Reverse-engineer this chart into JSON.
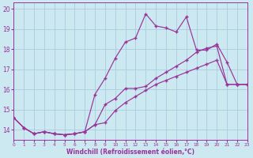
{
  "xlabel": "Windchill (Refroidissement éolien,°C)",
  "bg_color": "#cce8f0",
  "grid_color": "#aaccdd",
  "line_color": "#993399",
  "xmin": 0,
  "xmax": 23,
  "ymin": 13.5,
  "ymax": 20.3,
  "yticks": [
    14,
    15,
    16,
    17,
    18,
    19,
    20
  ],
  "xticks": [
    0,
    1,
    2,
    3,
    4,
    5,
    6,
    7,
    8,
    9,
    10,
    11,
    12,
    13,
    14,
    15,
    16,
    17,
    18,
    19,
    20,
    21,
    22,
    23
  ],
  "series1_x": [
    0,
    1,
    2,
    3,
    4,
    5,
    6,
    7,
    8,
    9,
    10,
    11,
    12,
    13,
    14,
    15,
    16,
    17,
    18,
    19,
    20,
    21,
    22,
    23
  ],
  "series1_y": [
    14.6,
    14.1,
    13.8,
    13.9,
    13.8,
    13.75,
    13.8,
    13.9,
    15.75,
    16.55,
    17.55,
    18.35,
    18.55,
    19.75,
    19.15,
    19.05,
    18.85,
    19.6,
    17.95,
    17.95,
    18.25,
    17.35,
    16.25,
    16.25
  ],
  "series2_x": [
    0,
    1,
    2,
    3,
    4,
    5,
    6,
    7,
    8,
    9,
    10,
    11,
    12,
    13,
    14,
    15,
    16,
    17,
    18,
    19,
    20,
    21,
    22,
    23
  ],
  "series2_y": [
    14.6,
    14.1,
    13.8,
    13.9,
    13.8,
    13.75,
    13.8,
    13.9,
    14.25,
    15.25,
    15.55,
    16.05,
    16.05,
    16.15,
    16.55,
    16.85,
    17.15,
    17.45,
    17.85,
    18.05,
    18.15,
    16.25,
    16.25,
    16.25
  ],
  "series3_x": [
    0,
    1,
    2,
    3,
    4,
    5,
    6,
    7,
    8,
    9,
    10,
    11,
    12,
    13,
    14,
    15,
    16,
    17,
    18,
    19,
    20,
    21,
    22,
    23
  ],
  "series3_y": [
    14.6,
    14.1,
    13.8,
    13.9,
    13.8,
    13.75,
    13.8,
    13.9,
    14.25,
    14.35,
    14.95,
    15.35,
    15.65,
    15.95,
    16.25,
    16.45,
    16.65,
    16.85,
    17.05,
    17.25,
    17.45,
    16.25,
    16.25,
    16.25
  ]
}
